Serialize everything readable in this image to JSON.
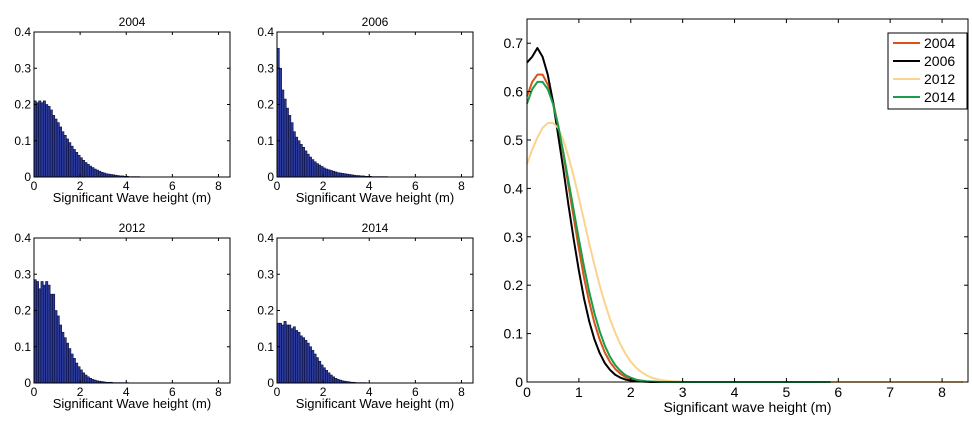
{
  "chart_data": [
    {
      "type": "bar",
      "title": "2004",
      "xlabel": "Significant Wave height (m)",
      "ylabel": "",
      "xlim": [
        0,
        8.5
      ],
      "ylim": [
        0,
        0.4
      ],
      "xticks": [
        "0",
        "2",
        "4",
        "6",
        "8"
      ],
      "yticks": [
        "0",
        "0.1",
        "0.2",
        "0.3",
        "0.4"
      ],
      "bin_width": 0.1,
      "bin_start": 0,
      "values": [
        0.21,
        0.205,
        0.21,
        0.205,
        0.21,
        0.2,
        0.195,
        0.185,
        0.17,
        0.16,
        0.15,
        0.138,
        0.125,
        0.115,
        0.105,
        0.095,
        0.085,
        0.076,
        0.068,
        0.06,
        0.053,
        0.046,
        0.04,
        0.035,
        0.03,
        0.026,
        0.022,
        0.019,
        0.016,
        0.013,
        0.011,
        0.009,
        0.008,
        0.007,
        0.006,
        0.005,
        0.004,
        0.003,
        0.003,
        0.002,
        0.002,
        0.001,
        0.001,
        0.001,
        0.001,
        0.001
      ]
    },
    {
      "type": "bar",
      "title": "2006",
      "xlabel": "Significant Wave height (m)",
      "ylabel": "",
      "xlim": [
        0,
        8.5
      ],
      "ylim": [
        0,
        0.4
      ],
      "xticks": [
        "0",
        "2",
        "4",
        "6",
        "8"
      ],
      "yticks": [
        "0",
        "0.1",
        "0.2",
        "0.3",
        "0.4"
      ],
      "bin_width": 0.1,
      "bin_start": 0,
      "values": [
        0.355,
        0.3,
        0.24,
        0.215,
        0.19,
        0.17,
        0.15,
        0.125,
        0.11,
        0.1,
        0.09,
        0.082,
        0.072,
        0.063,
        0.055,
        0.048,
        0.042,
        0.037,
        0.033,
        0.029,
        0.025,
        0.022,
        0.02,
        0.018,
        0.016,
        0.014,
        0.012,
        0.011,
        0.01,
        0.009,
        0.008,
        0.007,
        0.006,
        0.005,
        0.004,
        0.004,
        0.003,
        0.003,
        0.002,
        0.002,
        0.002,
        0.001,
        0.001,
        0.001,
        0.001,
        0.001,
        0.001,
        0.001
      ]
    },
    {
      "type": "bar",
      "title": "2012",
      "xlabel": "Significant Wave height (m)",
      "ylabel": "",
      "xlim": [
        0,
        8.5
      ],
      "ylim": [
        0,
        0.4
      ],
      "xticks": [
        "0",
        "2",
        "4",
        "6",
        "8"
      ],
      "yticks": [
        "0",
        "0.1",
        "0.2",
        "0.3",
        "0.4"
      ],
      "bin_width": 0.1,
      "bin_start": 0,
      "values": [
        0.285,
        0.28,
        0.26,
        0.28,
        0.27,
        0.28,
        0.27,
        0.245,
        0.245,
        0.2,
        0.185,
        0.16,
        0.14,
        0.125,
        0.11,
        0.095,
        0.08,
        0.068,
        0.055,
        0.045,
        0.036,
        0.028,
        0.022,
        0.017,
        0.013,
        0.01,
        0.008,
        0.006,
        0.005,
        0.004,
        0.003,
        0.002,
        0.002,
        0.002,
        0.001,
        0.001,
        0.001,
        0.001,
        0.001,
        0.001,
        0.001
      ]
    },
    {
      "type": "bar",
      "title": "2014",
      "xlabel": "Significant Wave height (m)",
      "ylabel": "",
      "xlim": [
        0,
        8.5
      ],
      "ylim": [
        0,
        0.4
      ],
      "xticks": [
        "0",
        "2",
        "4",
        "6",
        "8"
      ],
      "yticks": [
        "0",
        "0.1",
        "0.2",
        "0.3",
        "0.4"
      ],
      "bin_width": 0.1,
      "bin_start": 0,
      "values": [
        0.165,
        0.165,
        0.16,
        0.17,
        0.16,
        0.16,
        0.15,
        0.155,
        0.145,
        0.14,
        0.13,
        0.125,
        0.118,
        0.11,
        0.1,
        0.09,
        0.08,
        0.07,
        0.06,
        0.05,
        0.042,
        0.035,
        0.028,
        0.022,
        0.017,
        0.013,
        0.01,
        0.008,
        0.006,
        0.005,
        0.004,
        0.003,
        0.002,
        0.002,
        0.001,
        0.001,
        0.001,
        0.001,
        0.001
      ]
    },
    {
      "type": "line",
      "title": "",
      "xlabel": "Significant wave height (m)",
      "ylabel": "",
      "xlim": [
        0,
        8.5
      ],
      "ylim": [
        0,
        0.75
      ],
      "xticks": [
        "0",
        "1",
        "2",
        "3",
        "4",
        "5",
        "6",
        "7",
        "8"
      ],
      "yticks": [
        "0",
        "0.1",
        "0.2",
        "0.3",
        "0.4",
        "0.5",
        "0.6",
        "0.7"
      ],
      "legend_position": "top-right",
      "series": [
        {
          "name": "2004",
          "color": "#d95319",
          "x": [
            0,
            0.1,
            0.2,
            0.3,
            0.4,
            0.5,
            0.6,
            0.7,
            0.8,
            0.9,
            1.0,
            1.1,
            1.2,
            1.3,
            1.4,
            1.5,
            1.6,
            1.7,
            1.8,
            1.9,
            2.0,
            2.1,
            2.2,
            2.3,
            2.4,
            2.5,
            2.6,
            2.7,
            2.8,
            3.0,
            4.0,
            5.0,
            6.0,
            7.0,
            8.0,
            8.4
          ],
          "y": [
            0.59,
            0.62,
            0.635,
            0.635,
            0.615,
            0.58,
            0.53,
            0.47,
            0.405,
            0.34,
            0.275,
            0.215,
            0.165,
            0.122,
            0.088,
            0.061,
            0.041,
            0.027,
            0.017,
            0.01,
            0.006,
            0.003,
            0.002,
            0.001,
            0.0005,
            0,
            0,
            0,
            0,
            0,
            0,
            0,
            0,
            0,
            0,
            0
          ]
        },
        {
          "name": "2006",
          "color": "#000000",
          "x": [
            0,
            0.1,
            0.2,
            0.3,
            0.4,
            0.5,
            0.6,
            0.7,
            0.8,
            0.9,
            1.0,
            1.1,
            1.2,
            1.3,
            1.4,
            1.5,
            1.6,
            1.7,
            1.8,
            1.9,
            2.0,
            2.1,
            2.2,
            2.3,
            2.4,
            2.5,
            2.6,
            2.7,
            2.8,
            3.0,
            4.0,
            5.0,
            6.0,
            7.0,
            8.0,
            8.4
          ],
          "y": [
            0.66,
            0.672,
            0.69,
            0.672,
            0.635,
            0.58,
            0.51,
            0.44,
            0.365,
            0.295,
            0.23,
            0.172,
            0.125,
            0.088,
            0.06,
            0.039,
            0.025,
            0.015,
            0.009,
            0.005,
            0.003,
            0.0015,
            0.001,
            0.0005,
            0,
            0,
            0,
            0,
            0,
            0,
            0,
            0,
            0,
            0,
            0,
            0
          ]
        },
        {
          "name": "2012",
          "color": "#fbd38e",
          "x": [
            0,
            0.1,
            0.2,
            0.3,
            0.4,
            0.5,
            0.6,
            0.7,
            0.8,
            0.9,
            1.0,
            1.1,
            1.2,
            1.3,
            1.4,
            1.5,
            1.6,
            1.7,
            1.8,
            1.9,
            2.0,
            2.1,
            2.2,
            2.3,
            2.4,
            2.5,
            2.6,
            2.7,
            2.8,
            2.9,
            3.0,
            3.2,
            3.4,
            4.0,
            5.0,
            6.0,
            7.0,
            8.0,
            8.4
          ],
          "y": [
            0.45,
            0.48,
            0.505,
            0.525,
            0.535,
            0.535,
            0.525,
            0.5,
            0.465,
            0.425,
            0.38,
            0.333,
            0.286,
            0.242,
            0.2,
            0.163,
            0.13,
            0.102,
            0.078,
            0.058,
            0.042,
            0.03,
            0.021,
            0.014,
            0.009,
            0.006,
            0.004,
            0.0025,
            0.0015,
            0.001,
            0.0005,
            0,
            0,
            0,
            0,
            0,
            0,
            0,
            0
          ]
        },
        {
          "name": "2014",
          "color": "#1a9e4a",
          "x": [
            0,
            0.1,
            0.2,
            0.3,
            0.4,
            0.5,
            0.6,
            0.7,
            0.8,
            0.9,
            1.0,
            1.1,
            1.2,
            1.3,
            1.4,
            1.5,
            1.6,
            1.7,
            1.8,
            1.9,
            2.0,
            2.1,
            2.2,
            2.3,
            2.4,
            2.5,
            2.6,
            2.7,
            2.8,
            3.0,
            4.0,
            5.0,
            5.85
          ],
          "y": [
            0.575,
            0.605,
            0.62,
            0.62,
            0.605,
            0.575,
            0.53,
            0.475,
            0.415,
            0.355,
            0.295,
            0.238,
            0.186,
            0.142,
            0.105,
            0.075,
            0.052,
            0.035,
            0.023,
            0.014,
            0.009,
            0.005,
            0.003,
            0.0015,
            0.001,
            0.0005,
            0,
            0,
            0,
            0,
            0,
            0,
            0
          ]
        }
      ]
    }
  ]
}
